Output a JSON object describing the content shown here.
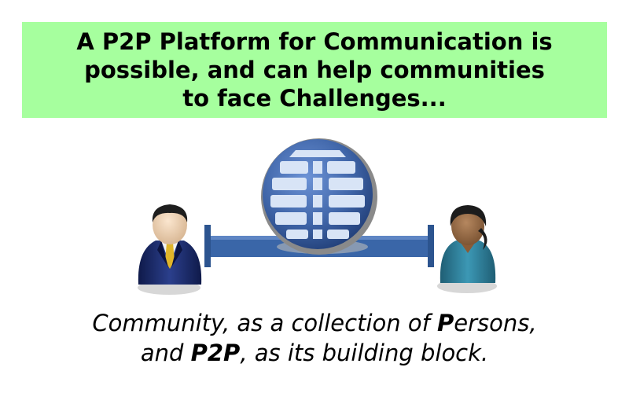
{
  "headline": {
    "lines": [
      "A P2P Platform for Communication is",
      "possible, and can help communities",
      "to face Challenges..."
    ]
  },
  "figure": {
    "left_person_icon": "man-in-suit-icon",
    "right_person_icon": "woman-avatar-icon",
    "globe_icon": "globe-icon",
    "connector": "connection-bar",
    "colors": {
      "globe": "#3f65a8",
      "bar": "#3a66a8",
      "suit": "#1a2a6a",
      "blouse": "#2f7f99",
      "headline_bg": "#a6ff9e"
    }
  },
  "caption": {
    "line1_a": "Community, as a collection of ",
    "line1_b": "P",
    "line1_c": "ersons,",
    "line2_a": "and ",
    "line2_b": "P2P",
    "line2_c": ", as its building block."
  }
}
